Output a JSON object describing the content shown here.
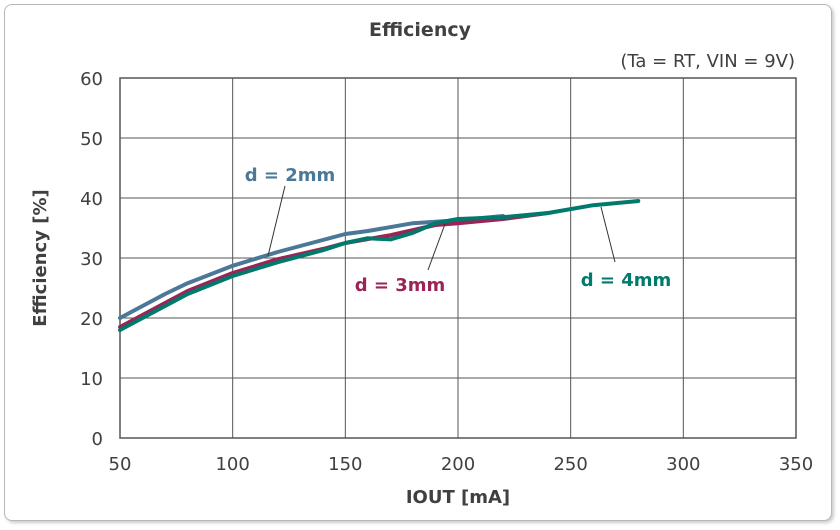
{
  "chart_data": {
    "type": "line",
    "title": "Efficiency",
    "subtitle": "(Ta = RT, VIN = 9V)",
    "xlabel": "IOUT [mA]",
    "ylabel": "Efficiency [%]",
    "xlim": [
      50,
      350
    ],
    "ylim": [
      0,
      60
    ],
    "xticks": [
      50,
      100,
      150,
      200,
      250,
      300,
      350
    ],
    "yticks": [
      0,
      10,
      20,
      30,
      40,
      50,
      60
    ],
    "grid": true,
    "series": [
      {
        "name": "d = 2mm",
        "color": "#4a7896",
        "x": [
          50,
          70,
          80,
          100,
          120,
          140,
          150,
          160,
          180,
          200,
          220
        ],
        "y": [
          20,
          24,
          25.8,
          28.7,
          31,
          33,
          34,
          34.5,
          35.8,
          36.3,
          37
        ]
      },
      {
        "name": "d = 3mm",
        "color": "#9b2457",
        "x": [
          50,
          70,
          80,
          100,
          120,
          140,
          150,
          170,
          190,
          200,
          220,
          240
        ],
        "y": [
          18.5,
          22.5,
          24.5,
          27.5,
          29.8,
          31.5,
          32.5,
          33.8,
          35.5,
          35.8,
          36.5,
          37.5
        ]
      },
      {
        "name": "d = 4mm",
        "color": "#007a6c",
        "x": [
          50,
          70,
          80,
          100,
          120,
          140,
          150,
          160,
          170,
          180,
          190,
          200,
          220,
          240,
          260,
          280
        ],
        "y": [
          18,
          22,
          24,
          27,
          29.3,
          31.3,
          32.5,
          33.3,
          33.1,
          34.2,
          35.8,
          36.5,
          36.8,
          37.5,
          38.8,
          39.5
        ]
      }
    ]
  }
}
